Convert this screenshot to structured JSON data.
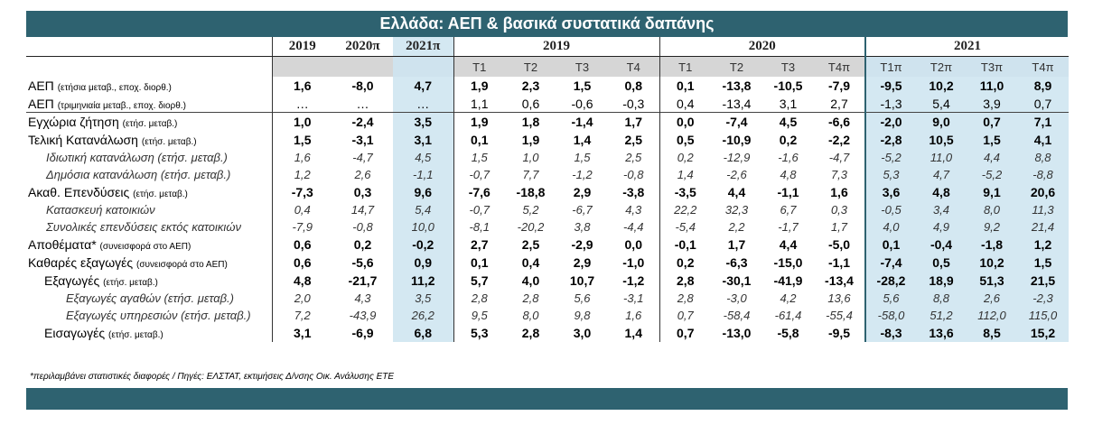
{
  "title": "Ελλάδα: ΑΕΠ & βασικά συστατικά δαπάνης",
  "annual_headers": [
    "2019",
    "2020π",
    "2021π"
  ],
  "year_groups": [
    "2019",
    "2020",
    "2021"
  ],
  "quarters": [
    "Τ1",
    "Τ2",
    "Τ3",
    "Τ4",
    "Τ1",
    "Τ2",
    "Τ3",
    "Τ4π",
    "Τ1π",
    "Τ2π",
    "Τ3π",
    "Τ4π"
  ],
  "rows": [
    {
      "label": "ΑΕΠ",
      "note": "(ετήσια μεταβ., εποχ. διορθ.)",
      "style": "main",
      "values": [
        "1,6",
        "-8,0",
        "4,7",
        "1,9",
        "2,3",
        "1,5",
        "0,8",
        "0,1",
        "-13,8",
        "-10,5",
        "-7,9",
        "-9,5",
        "10,2",
        "11,0",
        "8,9"
      ]
    },
    {
      "label": "ΑΕΠ",
      "note": "(τριμηνιαία μεταβ., εποχ. διορθ.)",
      "style": "plain",
      "values": [
        "…",
        "…",
        "…",
        "1,1",
        "0,6",
        "-0,6",
        "-0,3",
        "0,4",
        "-13,4",
        "3,1",
        "2,7",
        "-1,3",
        "5,4",
        "3,9",
        "0,7"
      ]
    },
    {
      "label": "Εγχώρια ζήτηση",
      "note": "(ετήσ. μεταβ.)",
      "style": "main sep",
      "values": [
        "1,0",
        "-2,4",
        "3,5",
        "1,9",
        "1,8",
        "-1,4",
        "1,7",
        "0,0",
        "-7,4",
        "4,5",
        "-6,6",
        "-2,0",
        "9,0",
        "0,7",
        "7,1"
      ]
    },
    {
      "label": "Τελική Κατανάλωση",
      "note": "(ετήσ. μεταβ.)",
      "style": "main",
      "values": [
        "1,5",
        "-3,1",
        "3,1",
        "0,1",
        "1,9",
        "1,4",
        "2,5",
        "0,5",
        "-10,9",
        "0,2",
        "-2,2",
        "-2,8",
        "10,5",
        "1,5",
        "4,1"
      ]
    },
    {
      "label": "Ιδιωτική κατανάλωση (ετήσ. μεταβ.)",
      "note": "",
      "style": "sub ind2",
      "values": [
        "1,6",
        "-4,7",
        "4,5",
        "1,5",
        "1,0",
        "1,5",
        "2,5",
        "0,2",
        "-12,9",
        "-1,6",
        "-4,7",
        "-5,2",
        "11,0",
        "4,4",
        "8,8"
      ]
    },
    {
      "label": "Δημόσια κατανάλωση (ετήσ. μεταβ.)",
      "note": "",
      "style": "sub ind2",
      "values": [
        "1,2",
        "2,6",
        "-1,1",
        "-0,7",
        "7,7",
        "-1,2",
        "-0,8",
        "1,4",
        "-2,6",
        "4,8",
        "7,3",
        "5,3",
        "4,7",
        "-5,2",
        "-8,8"
      ]
    },
    {
      "label": "Ακαθ. Επενδύσεις",
      "note": "(ετήσ. μεταβ.)",
      "style": "main",
      "values": [
        "-7,3",
        "0,3",
        "9,6",
        "-7,6",
        "-18,8",
        "2,9",
        "-3,8",
        "-3,5",
        "4,4",
        "-1,1",
        "1,6",
        "3,6",
        "4,8",
        "9,1",
        "20,6"
      ]
    },
    {
      "label": "Κατασκευή κατοικιών",
      "note": "",
      "style": "sub ind2",
      "values": [
        "0,4",
        "14,7",
        "5,4",
        "-0,7",
        "5,2",
        "-6,7",
        "4,3",
        "22,2",
        "32,3",
        "6,7",
        "0,3",
        "-0,5",
        "3,4",
        "8,0",
        "11,3"
      ]
    },
    {
      "label": "Συνολικές επενδύσεις εκτός κατοικιών",
      "note": "",
      "style": "sub ind2",
      "values": [
        "-7,9",
        "-0,8",
        "10,0",
        "-8,1",
        "-20,2",
        "3,8",
        "-4,4",
        "-5,4",
        "2,2",
        "-1,7",
        "1,7",
        "4,0",
        "4,9",
        "9,2",
        "21,4"
      ]
    },
    {
      "label": "Αποθέματα*",
      "note": "(συνεισφορά στο ΑΕΠ)",
      "style": "main",
      "values": [
        "0,6",
        "0,2",
        "-0,2",
        "2,7",
        "2,5",
        "-2,9",
        "0,0",
        "-0,1",
        "1,7",
        "4,4",
        "-5,0",
        "0,1",
        "-0,4",
        "-1,8",
        "1,2"
      ]
    },
    {
      "label": "Καθαρές εξαγωγές",
      "note": "(συνεισφορά στο ΑΕΠ)",
      "style": "main",
      "values": [
        "0,6",
        "-5,6",
        "0,9",
        "0,1",
        "0,4",
        "2,9",
        "-1,0",
        "0,2",
        "-6,3",
        "-15,0",
        "-1,1",
        "-7,4",
        "0,5",
        "10,2",
        "1,5"
      ]
    },
    {
      "label": "Εξαγωγές",
      "note": "(ετήσ. μεταβ.)",
      "style": "main ind1",
      "values": [
        "4,8",
        "-21,7",
        "11,2",
        "5,7",
        "4,0",
        "10,7",
        "-1,2",
        "2,8",
        "-30,1",
        "-41,9",
        "-13,4",
        "-28,2",
        "18,9",
        "51,3",
        "21,5"
      ]
    },
    {
      "label": "Εξαγωγές αγαθών (ετήσ. μεταβ.)",
      "note": "",
      "style": "sub ind3",
      "values": [
        "2,0",
        "4,3",
        "3,5",
        "2,8",
        "2,8",
        "5,6",
        "-3,1",
        "2,8",
        "-3,0",
        "4,2",
        "13,6",
        "5,6",
        "8,8",
        "2,6",
        "-2,3"
      ]
    },
    {
      "label": "Εξαγωγές υπηρεσιών (ετήσ. μεταβ.)",
      "note": "",
      "style": "sub ind3",
      "values": [
        "7,2",
        "-43,9",
        "26,2",
        "9,5",
        "8,0",
        "9,8",
        "1,6",
        "0,7",
        "-58,4",
        "-61,4",
        "-55,4",
        "-58,0",
        "51,2",
        "112,0",
        "115,0"
      ]
    },
    {
      "label": "Εισαγωγές",
      "note": "(ετήσ. μεταβ.)",
      "style": "main ind1",
      "values": [
        "3,1",
        "-6,9",
        "6,8",
        "5,3",
        "2,8",
        "3,0",
        "1,4",
        "0,7",
        "-13,0",
        "-5,8",
        "-9,5",
        "-8,3",
        "13,6",
        "8,5",
        "15,2"
      ]
    }
  ],
  "footnote": "*περιλαμβάνει στατιστικές διαφορές  / Πηγές: ΕΛΣΤΑΤ, εκτιμήσεις Δ/νσης Οικ. Ανάλυσης ΕΤΕ"
}
